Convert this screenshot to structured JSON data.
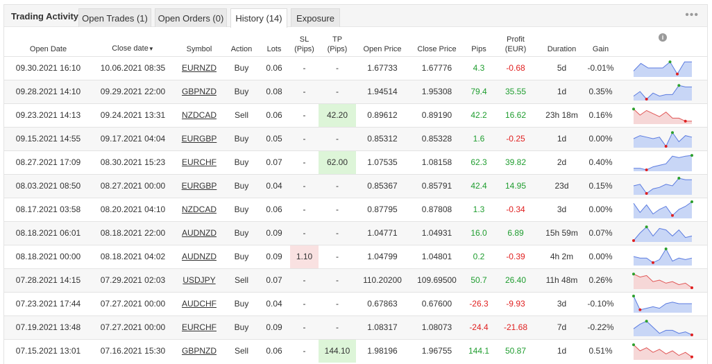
{
  "tabs": {
    "title": "Trading Activity",
    "open_trades": "Open Trades (1)",
    "open_orders": "Open Orders (0)",
    "history": "History (14)",
    "exposure": "Exposure",
    "more": "•••"
  },
  "headers": {
    "open_date": "Open Date",
    "close_date": "Close date",
    "close_sort": "▼",
    "symbol": "Symbol",
    "action": "Action",
    "lots": "Lots",
    "sl_1": "SL",
    "sl_2": "(Pips)",
    "tp_1": "TP",
    "tp_2": "(Pips)",
    "open_price": "Open Price",
    "close_price": "Close Price",
    "pips": "Pips",
    "profit_1": "Profit",
    "profit_2": "(EUR)",
    "duration": "Duration",
    "gain": "Gain",
    "info": "i"
  },
  "rows": [
    {
      "open_date": "09.30.2021 16:10",
      "close_date": "10.06.2021 08:35",
      "symbol": "EURNZD",
      "action": "Buy",
      "lots": "0.06",
      "sl": "-",
      "tp": "-",
      "open_price": "1.67733",
      "close_price": "1.67776",
      "pips": "4.3",
      "profit": "-0.68",
      "duration": "5d",
      "gain": "-0.01%",
      "pips_pos": true,
      "profit_pos": false,
      "spark": [
        0.3,
        0.8,
        0.5,
        0.5,
        0.5,
        0.9,
        0.1,
        0.9,
        0.9
      ],
      "spark_up": true
    },
    {
      "open_date": "09.28.2021 14:10",
      "close_date": "09.29.2021 22:00",
      "symbol": "GBPNZD",
      "action": "Buy",
      "lots": "0.08",
      "sl": "-",
      "tp": "-",
      "open_price": "1.94514",
      "close_price": "1.95308",
      "pips": "79.4",
      "profit": "35.55",
      "duration": "1d",
      "gain": "0.35%",
      "pips_pos": true,
      "profit_pos": true,
      "spark": [
        0.2,
        0.5,
        0.0,
        0.4,
        0.2,
        0.3,
        0.3,
        0.9,
        0.8,
        0.8
      ],
      "spark_up": true
    },
    {
      "open_date": "09.23.2021 14:13",
      "close_date": "09.24.2021 13:31",
      "symbol": "NZDCAD",
      "action": "Sell",
      "lots": "0.06",
      "sl": "-",
      "tp": "42.20",
      "tp_hl": true,
      "open_price": "0.89612",
      "close_price": "0.89190",
      "pips": "42.2",
      "profit": "16.62",
      "duration": "23h 18m",
      "gain": "0.16%",
      "pips_pos": true,
      "profit_pos": true,
      "spark": [
        0.9,
        0.5,
        0.8,
        0.6,
        0.4,
        0.7,
        0.3,
        0.3,
        0.1,
        0.1
      ],
      "spark_up": false
    },
    {
      "open_date": "09.15.2021 14:55",
      "close_date": "09.17.2021 04:04",
      "symbol": "EURGBP",
      "action": "Buy",
      "lots": "0.05",
      "sl": "-",
      "tp": "-",
      "open_price": "0.85312",
      "close_price": "0.85328",
      "pips": "1.6",
      "profit": "-0.25",
      "duration": "1d",
      "gain": "0.00%",
      "pips_pos": true,
      "profit_pos": false,
      "spark": [
        0.5,
        0.7,
        0.6,
        0.5,
        0.6,
        0.0,
        0.9,
        0.3,
        0.7,
        0.6
      ],
      "spark_up": true
    },
    {
      "open_date": "08.27.2021 17:09",
      "close_date": "08.30.2021 15:23",
      "symbol": "EURCHF",
      "action": "Buy",
      "lots": "0.07",
      "sl": "-",
      "tp": "62.00",
      "tp_hl": true,
      "open_price": "1.07535",
      "close_price": "1.08158",
      "pips": "62.3",
      "profit": "39.82",
      "duration": "2d",
      "gain": "0.40%",
      "pips_pos": true,
      "profit_pos": true,
      "spark": [
        0.1,
        0.1,
        0.0,
        0.2,
        0.3,
        0.4,
        0.9,
        0.8,
        0.9,
        0.95
      ],
      "spark_up": true
    },
    {
      "open_date": "08.03.2021 08:50",
      "close_date": "08.27.2021 00:00",
      "symbol": "EURGBP",
      "action": "Buy",
      "lots": "0.04",
      "sl": "-",
      "tp": "-",
      "open_price": "0.85367",
      "close_price": "0.85791",
      "pips": "42.4",
      "profit": "14.95",
      "duration": "23d",
      "gain": "0.15%",
      "pips_pos": true,
      "profit_pos": true,
      "spark": [
        0.5,
        0.6,
        0.0,
        0.3,
        0.4,
        0.6,
        0.5,
        1.0,
        0.9,
        0.9
      ],
      "spark_up": true
    },
    {
      "open_date": "08.17.2021 03:58",
      "close_date": "08.20.2021 04:10",
      "symbol": "NZDCAD",
      "action": "Buy",
      "lots": "0.06",
      "sl": "-",
      "tp": "-",
      "open_price": "0.87795",
      "close_price": "0.87808",
      "pips": "1.3",
      "profit": "-0.34",
      "duration": "3d",
      "gain": "0.00%",
      "pips_pos": true,
      "profit_pos": false,
      "spark": [
        0.9,
        0.3,
        0.8,
        0.2,
        0.5,
        0.7,
        0.1,
        0.5,
        0.7,
        1.0
      ],
      "spark_up": true
    },
    {
      "open_date": "08.18.2021 06:01",
      "close_date": "08.18.2021 22:00",
      "symbol": "AUDNZD",
      "action": "Buy",
      "lots": "0.09",
      "sl": "-",
      "tp": "-",
      "open_price": "1.04771",
      "close_price": "1.04931",
      "pips": "16.0",
      "profit": "6.89",
      "duration": "15h 59m",
      "gain": "0.07%",
      "pips_pos": true,
      "profit_pos": true,
      "spark": [
        0.0,
        0.5,
        0.9,
        0.3,
        0.8,
        0.7,
        0.3,
        0.7,
        0.2,
        0.3
      ],
      "spark_up": true
    },
    {
      "open_date": "08.18.2021 00:00",
      "close_date": "08.18.2021 04:02",
      "symbol": "AUDNZD",
      "action": "Buy",
      "lots": "0.09",
      "sl": "1.10",
      "sl_hl": true,
      "tp": "-",
      "open_price": "1.04799",
      "close_price": "1.04801",
      "pips": "0.2",
      "profit": "-0.39",
      "duration": "4h 2m",
      "gain": "0.00%",
      "pips_pos": true,
      "profit_pos": false,
      "spark": [
        0.5,
        0.4,
        0.4,
        0.1,
        0.3,
        1.0,
        0.2,
        0.4,
        0.3,
        0.4
      ],
      "spark_up": true
    },
    {
      "open_date": "07.28.2021 14:15",
      "close_date": "07.29.2021 02:03",
      "symbol": "USDJPY",
      "action": "Sell",
      "lots": "0.07",
      "sl": "-",
      "tp": "-",
      "open_price": "110.20200",
      "close_price": "109.69500",
      "pips": "50.7",
      "profit": "26.40",
      "duration": "11h 48m",
      "gain": "0.26%",
      "pips_pos": true,
      "profit_pos": true,
      "spark": [
        0.9,
        0.7,
        0.8,
        0.4,
        0.5,
        0.3,
        0.4,
        0.2,
        0.3,
        0.0
      ],
      "spark_up": false
    },
    {
      "open_date": "07.23.2021 17:44",
      "close_date": "07.27.2021 00:00",
      "symbol": "AUDCHF",
      "action": "Buy",
      "lots": "0.04",
      "sl": "-",
      "tp": "-",
      "open_price": "0.67863",
      "close_price": "0.67600",
      "pips": "-26.3",
      "profit": "-9.93",
      "duration": "3d",
      "gain": "-0.10%",
      "pips_pos": false,
      "profit_pos": false,
      "spark": [
        1.0,
        0.1,
        0.2,
        0.3,
        0.2,
        0.5,
        0.6,
        0.5,
        0.5,
        0.5
      ],
      "spark_up": true
    },
    {
      "open_date": "07.19.2021 13:48",
      "close_date": "07.27.2021 00:00",
      "symbol": "EURCHF",
      "action": "Buy",
      "lots": "0.09",
      "sl": "-",
      "tp": "-",
      "open_price": "1.08317",
      "close_price": "1.08073",
      "pips": "-24.4",
      "profit": "-21.68",
      "duration": "7d",
      "gain": "-0.22%",
      "pips_pos": false,
      "profit_pos": false,
      "spark": [
        0.4,
        0.7,
        0.9,
        0.5,
        0.1,
        0.3,
        0.3,
        0.1,
        0.2,
        0.0
      ],
      "spark_up": true
    },
    {
      "open_date": "07.15.2021 13:01",
      "close_date": "07.16.2021 15:30",
      "symbol": "GBPNZD",
      "action": "Sell",
      "lots": "0.06",
      "sl": "-",
      "tp": "144.10",
      "tp_hl": true,
      "open_price": "1.98196",
      "close_price": "1.96755",
      "pips": "144.1",
      "profit": "50.87",
      "duration": "1d",
      "gain": "0.51%",
      "pips_pos": true,
      "profit_pos": true,
      "spark": [
        0.9,
        0.5,
        0.7,
        0.4,
        0.6,
        0.3,
        0.5,
        0.2,
        0.4,
        0.1
      ],
      "spark_up": false
    }
  ],
  "colors": {
    "positive": "#1f9d2f",
    "negative": "#e02020",
    "spark_up_line": "#5b7be0",
    "spark_up_fill": "#c8d6f6",
    "spark_down_line": "#e05555",
    "spark_down_fill": "#f6d7d7",
    "spark_max_dot": "#2ca02c",
    "spark_min_dot": "#e02020"
  }
}
